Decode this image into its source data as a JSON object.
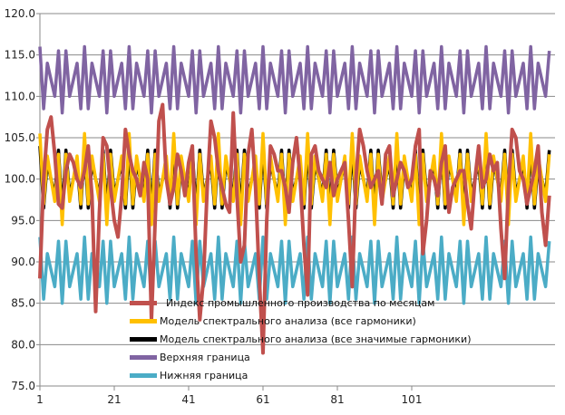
{
  "chart_data": {
    "type": "line",
    "title": "",
    "xlabel": "",
    "ylabel": "",
    "ylim": [
      75,
      120
    ],
    "yticks": [
      "75.0",
      "80.0",
      "85.0",
      "90.0",
      "95.0",
      "100.0",
      "105.0",
      "110.0",
      "115.0",
      "120.0"
    ],
    "xticks": [
      "1",
      "21",
      "41",
      "61",
      "81",
      "101"
    ],
    "x_range": [
      1,
      138
    ],
    "grid": "horizontal",
    "legend_placement": "bottom-center inside plot",
    "series": [
      {
        "name": "Индекс промышленного производства по месяцам",
        "color": "#c0504d",
        "values": [
          88,
          100,
          106,
          107.5,
          103,
          97,
          96.5,
          101,
          103,
          102,
          100,
          99,
          101,
          104,
          98,
          84,
          96,
          105,
          104,
          99,
          95,
          93,
          98,
          106,
          103,
          101,
          100,
          98,
          102,
          100,
          83,
          95,
          107,
          109,
          100,
          97,
          99,
          103,
          101,
          98,
          102,
          104,
          91,
          83,
          88,
          99,
          107,
          105,
          101,
          99,
          97,
          96,
          108,
          98,
          90,
          92,
          103,
          106,
          99,
          88,
          79,
          95,
          104,
          103,
          101,
          101,
          99,
          96,
          102,
          105,
          100,
          92,
          86,
          103,
          104,
          101,
          100,
          99,
          102,
          98,
          100,
          101,
          102,
          95,
          87,
          100,
          106,
          104,
          101,
          99,
          100,
          101,
          97,
          103,
          104,
          98,
          100,
          102,
          101,
          99,
          100,
          104,
          106,
          91,
          95,
          101,
          100,
          98,
          102,
          104,
          96,
          99,
          100,
          101,
          101,
          97,
          94,
          100,
          104,
          99,
          100,
          103,
          101,
          102,
          94,
          88,
          99,
          106,
          105,
          101,
          100,
          97,
          99,
          101,
          104,
          96,
          92,
          98
        ]
      },
      {
        "name": "Модель спектрального анализа (все гармоники)",
        "color": "#ffc000",
        "values": [
          105.5,
          97,
          102.8,
          100,
          97.3,
          103,
          94.5,
          103,
          97.3,
          100,
          102.8,
          97,
          105.5,
          97,
          102.8,
          100,
          97.3,
          103,
          94.5,
          103,
          97.3,
          100,
          102.8,
          97,
          105.5,
          97,
          102.8,
          100,
          97.3,
          103,
          94.5,
          103,
          97.3,
          100,
          102.8,
          97,
          105.5,
          97,
          102.8,
          100,
          97.3,
          103,
          94.5,
          103,
          97.3,
          100,
          102.8,
          97,
          105.5,
          97,
          102.8,
          100,
          97.3,
          103,
          94.5,
          103,
          97.3,
          100,
          102.8,
          97,
          105.5,
          97,
          102.8,
          100,
          97.3,
          103,
          94.5,
          103,
          97.3,
          100,
          102.8,
          97,
          105.5,
          97,
          102.8,
          100,
          97.3,
          103,
          94.5,
          103,
          97.3,
          100,
          102.8,
          97,
          105.5,
          97,
          102.8,
          100,
          97.3,
          103,
          94.5,
          103,
          97.3,
          100,
          102.8,
          97,
          105.5,
          97,
          102.8,
          100,
          97.3,
          103,
          94.5,
          103,
          97.3,
          100,
          102.8,
          97,
          105.5,
          97,
          102.8,
          100,
          97.3,
          103,
          94.5,
          103,
          97.3,
          100,
          102.8,
          97,
          105.5,
          97,
          102.8,
          100,
          97.3,
          103,
          94.5,
          103,
          97.3,
          100,
          102.8,
          97,
          105.5,
          97,
          102.8,
          100,
          97.3,
          103
        ]
      },
      {
        "name": "Модель спектрального анализа (все значимые гармоники)",
        "color": "#000000",
        "values": [
          104,
          96.5,
          102,
          100,
          98,
          103.5,
          96,
          103.5,
          98,
          100,
          102,
          96.5,
          104,
          96.5,
          102,
          100,
          98,
          103.5,
          96,
          103.5,
          98,
          100,
          102,
          96.5,
          104,
          96.5,
          102,
          100,
          98,
          103.5,
          96,
          103.5,
          98,
          100,
          102,
          96.5,
          104,
          96.5,
          102,
          100,
          98,
          103.5,
          96,
          103.5,
          98,
          100,
          102,
          96.5,
          104,
          96.5,
          102,
          100,
          98,
          103.5,
          96,
          103.5,
          98,
          100,
          102,
          96.5,
          104,
          96.5,
          102,
          100,
          98,
          103.5,
          96,
          103.5,
          98,
          100,
          102,
          96.5,
          104,
          96.5,
          102,
          100,
          98,
          103.5,
          96,
          103.5,
          98,
          100,
          102,
          96.5,
          104,
          96.5,
          102,
          100,
          98,
          103.5,
          96,
          103.5,
          98,
          100,
          102,
          96.5,
          104,
          96.5,
          102,
          100,
          98,
          103.5,
          96,
          103.5,
          98,
          100,
          102,
          96.5,
          104,
          96.5,
          102,
          100,
          98,
          103.5,
          96,
          103.5,
          98,
          100,
          102,
          96.5,
          104,
          96.5,
          102,
          100,
          98,
          103.5,
          96,
          103.5,
          98,
          100,
          102,
          96.5,
          104,
          96.5,
          102,
          100,
          98,
          103.5
        ]
      },
      {
        "name": "Верхняя граница",
        "color": "#8064a2",
        "values": [
          116,
          108.5,
          114,
          112,
          110,
          115.5,
          108,
          115.5,
          110,
          112,
          114,
          108.5,
          116,
          108.5,
          114,
          112,
          110,
          115.5,
          108,
          115.5,
          110,
          112,
          114,
          108.5,
          116,
          108.5,
          114,
          112,
          110,
          115.5,
          108,
          115.5,
          110,
          112,
          114,
          108.5,
          116,
          108.5,
          114,
          112,
          110,
          115.5,
          108,
          115.5,
          110,
          112,
          114,
          108.5,
          116,
          108.5,
          114,
          112,
          110,
          115.5,
          108,
          115.5,
          110,
          112,
          114,
          108.5,
          116,
          108.5,
          114,
          112,
          110,
          115.5,
          108,
          115.5,
          110,
          112,
          114,
          108.5,
          116,
          108.5,
          114,
          112,
          110,
          115.5,
          108,
          115.5,
          110,
          112,
          114,
          108.5,
          116,
          108.5,
          114,
          112,
          110,
          115.5,
          108,
          115.5,
          110,
          112,
          114,
          108.5,
          116,
          108.5,
          114,
          112,
          110,
          115.5,
          108,
          115.5,
          110,
          112,
          114,
          108.5,
          116,
          108.5,
          114,
          112,
          110,
          115.5,
          108,
          115.5,
          110,
          112,
          114,
          108.5,
          116,
          108.5,
          114,
          112,
          110,
          115.5,
          108,
          115.5,
          110,
          112,
          114,
          108.5,
          116,
          108.5,
          114,
          112,
          110,
          115.5
        ]
      },
      {
        "name": "Нижняя граница",
        "color": "#4bacc6",
        "values": [
          93,
          85.5,
          91,
          89,
          87,
          92.5,
          85,
          92.5,
          87,
          89,
          91,
          85.5,
          93,
          85.5,
          91,
          89,
          87,
          92.5,
          85,
          92.5,
          87,
          89,
          91,
          85.5,
          93,
          85.5,
          91,
          89,
          87,
          92.5,
          85,
          92.5,
          87,
          89,
          91,
          85.5,
          93,
          85.5,
          91,
          89,
          87,
          92.5,
          85,
          92.5,
          87,
          89,
          91,
          85.5,
          93,
          85.5,
          91,
          89,
          87,
          92.5,
          85,
          92.5,
          87,
          89,
          91,
          85.5,
          93,
          85.5,
          91,
          89,
          87,
          92.5,
          85,
          92.5,
          87,
          89,
          91,
          85.5,
          93,
          85.5,
          91,
          89,
          87,
          92.5,
          85,
          92.5,
          87,
          89,
          91,
          85.5,
          93,
          85.5,
          91,
          89,
          87,
          92.5,
          85,
          92.5,
          87,
          89,
          91,
          85.5,
          93,
          85.5,
          91,
          89,
          87,
          92.5,
          85,
          92.5,
          87,
          89,
          91,
          85.5,
          93,
          85.5,
          91,
          89,
          87,
          92.5,
          85,
          92.5,
          87,
          89,
          91,
          85.5,
          93,
          85.5,
          91,
          89,
          87,
          92.5,
          85,
          92.5,
          87,
          89,
          91,
          85.5,
          93,
          85.5,
          91,
          89,
          87,
          92.5
        ]
      }
    ]
  }
}
